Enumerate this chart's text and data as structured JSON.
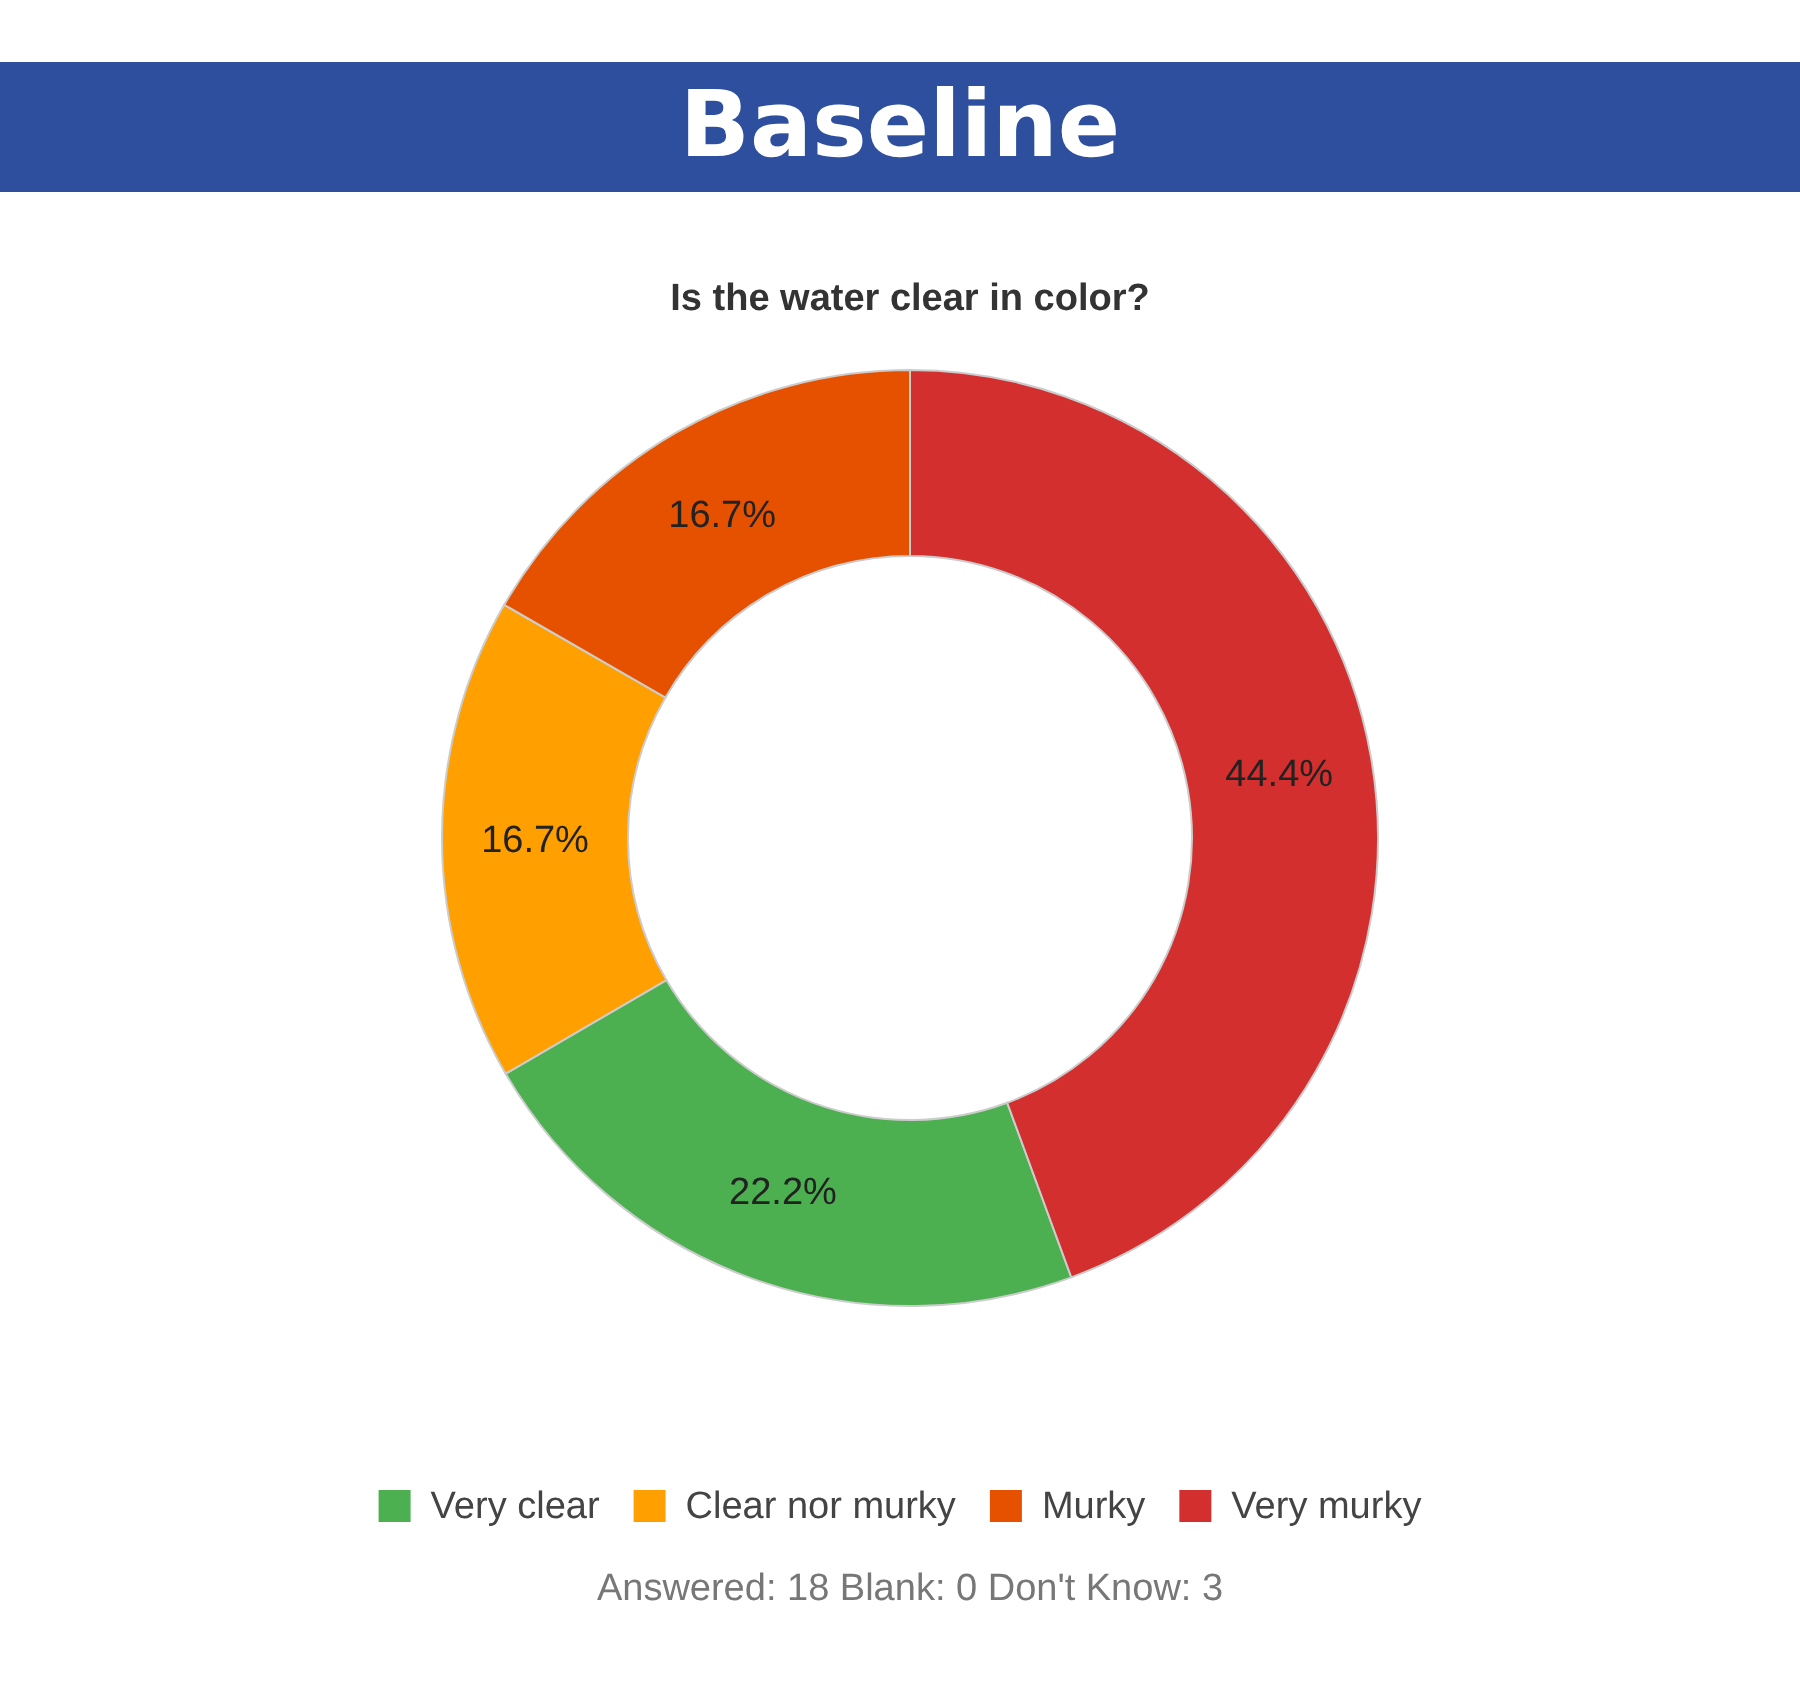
{
  "chart_data": {
    "type": "donut",
    "title": "Baseline",
    "subtitle": "Is the water clear in color?",
    "categories": [
      "Very clear",
      "Clear nor murky",
      "Murky",
      "Very murky"
    ],
    "values": [
      22.2,
      16.7,
      16.7,
      44.4
    ],
    "colors": [
      "#4caf50",
      "#ff9f00",
      "#e65100",
      "#d32f2f"
    ],
    "value_labels": [
      "22.2%",
      "16.7%",
      "16.7%",
      "44.4%"
    ],
    "legend": "bottom",
    "annotations": [
      "Answered: 18 Blank: 0 Don't Know: 3"
    ]
  }
}
